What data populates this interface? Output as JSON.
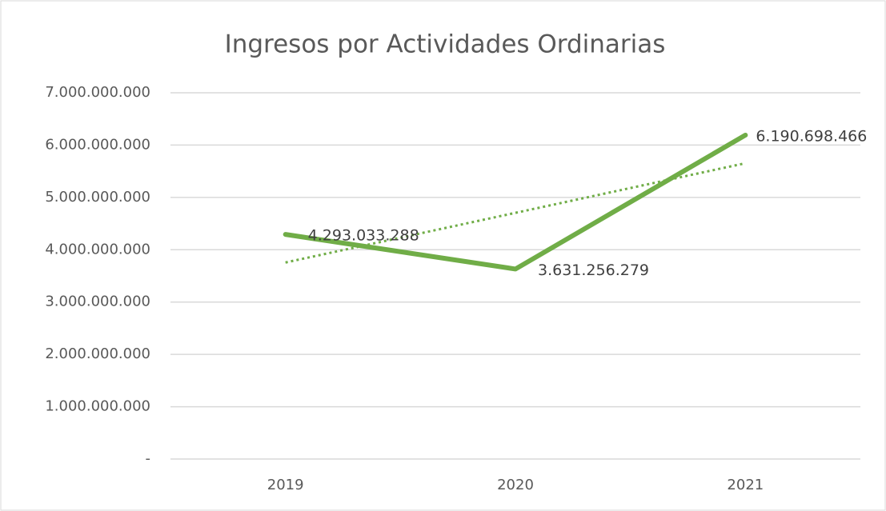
{
  "chart_data": {
    "type": "line",
    "title": "Ingresos por Actividades Ordinarias",
    "categories": [
      "2019",
      "2020",
      "2021"
    ],
    "series": [
      {
        "name": "Ingresos por Actividades Ordinarias",
        "color": "#70ad47",
        "values": [
          4293033288,
          3631256279,
          6190698466
        ],
        "value_labels": [
          "4.293.033.288",
          "3.631.256.279",
          "6.190.698.466"
        ]
      }
    ],
    "trendline": "linear",
    "ylim": [
      0,
      7000000000
    ],
    "yticks": [
      {
        "value": 0,
        "label": "-"
      },
      {
        "value": 1000000000,
        "label": "1.000.000.000"
      },
      {
        "value": 2000000000,
        "label": "2.000.000.000"
      },
      {
        "value": 3000000000,
        "label": "3.000.000.000"
      },
      {
        "value": 4000000000,
        "label": "4.000.000.000"
      },
      {
        "value": 5000000000,
        "label": "5.000.000.000"
      },
      {
        "value": 6000000000,
        "label": "6.000.000.000"
      },
      {
        "value": 7000000000,
        "label": "7.000.000.000"
      }
    ],
    "grid": true
  }
}
